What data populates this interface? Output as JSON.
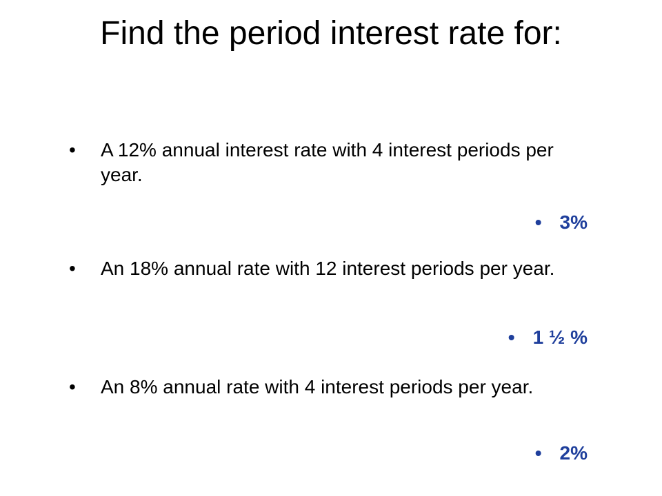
{
  "title": "Find the period interest rate for:",
  "items": [
    {
      "question": "A 12% annual interest rate with 4 interest periods per year.",
      "answer": "3%"
    },
    {
      "question": "An 18% annual rate with 12 interest periods per year.",
      "answer": "1 ½ %"
    },
    {
      "question": "An 8% annual rate with 4 interest periods per year.",
      "answer": "2%"
    }
  ]
}
